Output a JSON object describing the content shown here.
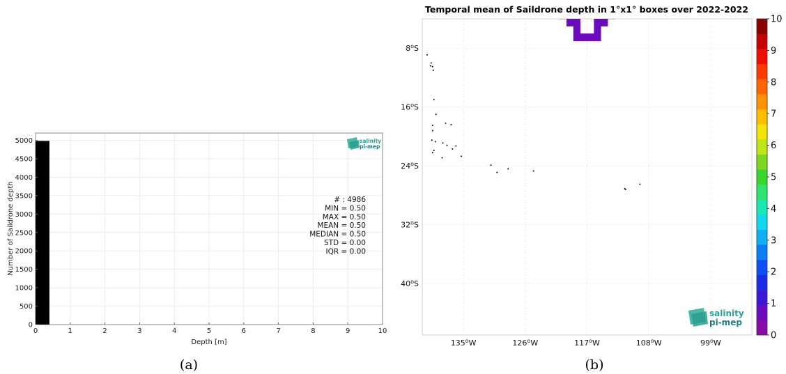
{
  "chart_data": [
    {
      "type": "bar",
      "xlabel": "Depth [m]",
      "ylabel": "Number of Saildrone depth",
      "xlim": [
        0,
        10
      ],
      "ylim": [
        0,
        5200
      ],
      "x_ticks": [
        "0",
        "1",
        "2",
        "3",
        "4",
        "5",
        "6",
        "7",
        "8",
        "9",
        "10"
      ],
      "y_ticks": [
        "0",
        "500",
        "1000",
        "1500",
        "2000",
        "2500",
        "3000",
        "3500",
        "4000",
        "4500",
        "5000"
      ],
      "bins": [
        {
          "x0": 0,
          "x1": 0.4,
          "value": 4986
        }
      ],
      "grid": true,
      "bar_color": "#000000",
      "stats": [
        {
          "label": "# :",
          "value": "4986"
        },
        {
          "label": "MIN =",
          "value": "0.50"
        },
        {
          "label": "MAX =",
          "value": "0.50"
        },
        {
          "label": "MEAN =",
          "value": "0.50"
        },
        {
          "label": "MEDIAN =",
          "value": "0.50"
        },
        {
          "label": "STD =",
          "value": "0.00"
        },
        {
          "label": "IQR =",
          "value": "0.00"
        }
      ],
      "logo": {
        "line1": "salinity",
        "line2": "pi-mep"
      },
      "caption": "(a)"
    },
    {
      "type": "heatmap",
      "title": "Temporal mean of Saildrone depth in 1°x1° boxes over 2022-2022",
      "lon_range": [
        -141,
        -93
      ],
      "lat_range": [
        -47,
        -4
      ],
      "lon_ticks": [
        {
          "value": -135,
          "label": "135",
          "hemi": "W"
        },
        {
          "value": -126,
          "label": "126",
          "hemi": "W"
        },
        {
          "value": -117,
          "label": "117",
          "hemi": "W"
        },
        {
          "value": -108,
          "label": "108",
          "hemi": "W"
        },
        {
          "value": -99,
          "label": "99",
          "hemi": "W"
        }
      ],
      "lat_ticks": [
        {
          "value": -8,
          "label": "8",
          "hemi": "S"
        },
        {
          "value": -16,
          "label": "16",
          "hemi": "S"
        },
        {
          "value": -24,
          "label": "24",
          "hemi": "S"
        },
        {
          "value": -32,
          "label": "32",
          "hemi": "S"
        },
        {
          "value": -40,
          "label": "40",
          "hemi": "S"
        }
      ],
      "colorbar": {
        "min": 0,
        "max": 10,
        "ticks": [
          "0",
          "1",
          "2",
          "3",
          "4",
          "5",
          "6",
          "7",
          "8",
          "9",
          "10"
        ],
        "colors": [
          "#8a0aa6",
          "#6a0bc0",
          "#3c18d6",
          "#1b2ce8",
          "#0a50f4",
          "#0b7ff2",
          "#12aef2",
          "#10d8ee",
          "#1ae8b4",
          "#2fe46e",
          "#39d62d",
          "#7ed61f",
          "#bde614",
          "#f4e40a",
          "#ffbf00",
          "#ff9200",
          "#ff6500",
          "#ff3a00",
          "#ed0f00",
          "#c70000",
          "#8d0000"
        ]
      },
      "cells": [
        {
          "lon": -121,
          "lat": -4,
          "value": 0.5
        },
        {
          "lon": -120,
          "lat": -4,
          "value": 0.5
        },
        {
          "lon": -119,
          "lat": -4,
          "value": 0.5
        },
        {
          "lon": -116,
          "lat": -4,
          "value": 0.5
        },
        {
          "lon": -115,
          "lat": -4,
          "value": 0.5
        },
        {
          "lon": -114,
          "lat": -4,
          "value": 0.5
        },
        {
          "lon": -120,
          "lat": -5,
          "value": 0.5
        },
        {
          "lon": -119,
          "lat": -5,
          "value": 0.5
        },
        {
          "lon": -116,
          "lat": -5,
          "value": 0.5
        },
        {
          "lon": -115,
          "lat": -5,
          "value": 0.5
        },
        {
          "lon": -119,
          "lat": -6,
          "value": 0.5
        },
        {
          "lon": -116,
          "lat": -6,
          "value": 0.5
        },
        {
          "lon": -119,
          "lat": -7,
          "value": 0.5
        },
        {
          "lon": -118,
          "lat": -7,
          "value": 0.5
        },
        {
          "lon": -117,
          "lat": -7,
          "value": 0.5
        },
        {
          "lon": -116,
          "lat": -7,
          "value": 0.5
        }
      ],
      "land_points": [
        [
          -140.3,
          -8.9
        ],
        [
          -139.7,
          -10.0
        ],
        [
          -139.8,
          -10.4
        ],
        [
          -139.5,
          -10.5
        ],
        [
          -139.4,
          -11.0
        ],
        [
          -139.3,
          -15.0
        ],
        [
          -139.0,
          -17.0
        ],
        [
          -137.6,
          -18.2
        ],
        [
          -136.8,
          -18.4
        ],
        [
          -139.5,
          -18.5
        ],
        [
          -139.5,
          -19.2
        ],
        [
          -139.6,
          -20.5
        ],
        [
          -139.1,
          -20.7
        ],
        [
          -138.0,
          -20.9
        ],
        [
          -137.4,
          -21.2
        ],
        [
          -136.1,
          -21.3
        ],
        [
          -136.6,
          -21.7
        ],
        [
          -139.3,
          -21.9
        ],
        [
          -139.5,
          -22.2
        ],
        [
          -135.3,
          -22.7
        ],
        [
          -138.1,
          -22.9
        ],
        [
          -131.0,
          -23.9
        ],
        [
          -130.1,
          -24.9
        ],
        [
          -128.5,
          -24.4
        ],
        [
          -124.8,
          -24.7
        ],
        [
          -111.5,
          -27.1
        ],
        [
          -111.4,
          -27.2
        ],
        [
          -109.3,
          -26.5
        ]
      ],
      "logo": {
        "line1": "salinity",
        "line2": "pi-mep"
      },
      "caption": "(b)"
    }
  ]
}
